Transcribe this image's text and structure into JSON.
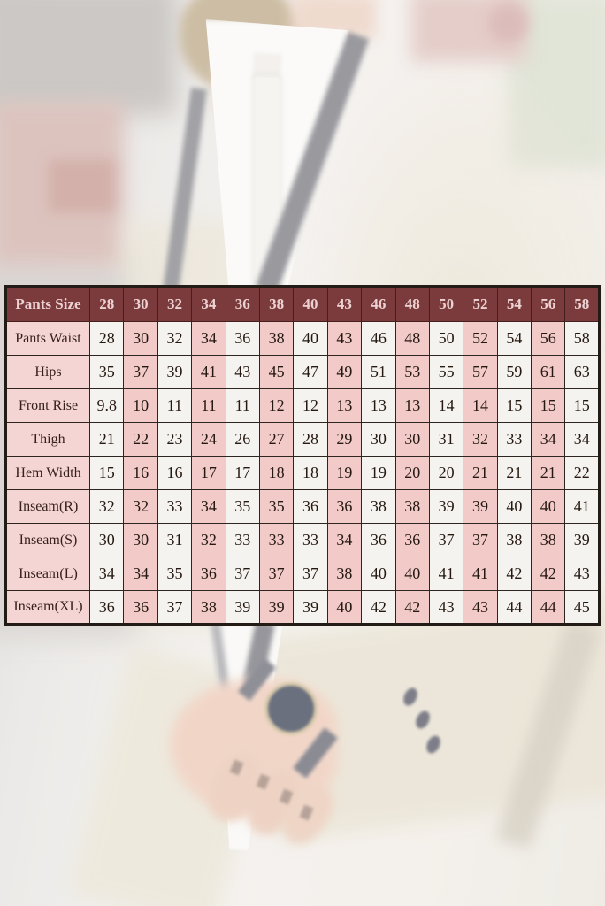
{
  "colors": {
    "header_bg": "#7b3b3c",
    "header_text": "#ecd2d2",
    "label_cell_bg": "#f4d5d3",
    "stripe_pink": "#f2cac7",
    "stripe_white": "#f5f3ef",
    "grid_border": "#2e2420",
    "data_text": "#241810"
  },
  "chart_data": {
    "type": "table",
    "title": "Pants Size",
    "columns": [
      "Pants Size",
      "28",
      "30",
      "32",
      "34",
      "36",
      "38",
      "40",
      "43",
      "46",
      "48",
      "50",
      "52",
      "54",
      "56",
      "58"
    ],
    "rows": [
      {
        "label": "Pants Waist",
        "values": [
          "28",
          "30",
          "32",
          "34",
          "36",
          "38",
          "40",
          "43",
          "46",
          "48",
          "50",
          "52",
          "54",
          "56",
          "58"
        ]
      },
      {
        "label": "Hips",
        "values": [
          "35",
          "37",
          "39",
          "41",
          "43",
          "45",
          "47",
          "49",
          "51",
          "53",
          "55",
          "57",
          "59",
          "61",
          "63"
        ]
      },
      {
        "label": "Front Rise",
        "values": [
          "9.8",
          "10",
          "11",
          "11",
          "11",
          "12",
          "12",
          "13",
          "13",
          "13",
          "14",
          "14",
          "15",
          "15",
          "15"
        ]
      },
      {
        "label": "Thigh",
        "values": [
          "21",
          "22",
          "23",
          "24",
          "26",
          "27",
          "28",
          "29",
          "30",
          "30",
          "31",
          "32",
          "33",
          "34",
          "34"
        ]
      },
      {
        "label": "Hem Width",
        "values": [
          "15",
          "16",
          "16",
          "17",
          "17",
          "18",
          "18",
          "19",
          "19",
          "20",
          "20",
          "21",
          "21",
          "21",
          "22"
        ]
      },
      {
        "label": "Inseam(R)",
        "values": [
          "32",
          "32",
          "33",
          "34",
          "35",
          "35",
          "36",
          "36",
          "38",
          "38",
          "39",
          "39",
          "40",
          "40",
          "41"
        ]
      },
      {
        "label": "Inseam(S)",
        "values": [
          "30",
          "30",
          "31",
          "32",
          "33",
          "33",
          "33",
          "34",
          "36",
          "36",
          "37",
          "37",
          "38",
          "38",
          "39"
        ]
      },
      {
        "label": "Inseam(L)",
        "values": [
          "34",
          "34",
          "35",
          "36",
          "37",
          "37",
          "37",
          "38",
          "40",
          "40",
          "41",
          "41",
          "42",
          "42",
          "43"
        ]
      },
      {
        "label": "Inseam(XL)",
        "values": [
          "36",
          "36",
          "37",
          "38",
          "39",
          "39",
          "39",
          "40",
          "42",
          "42",
          "43",
          "43",
          "44",
          "44",
          "45"
        ]
      }
    ],
    "layout": {
      "header_position": "top",
      "column_striping": "data columns alternate white then pink, starting white at size 28",
      "label_column": "light pink"
    }
  }
}
